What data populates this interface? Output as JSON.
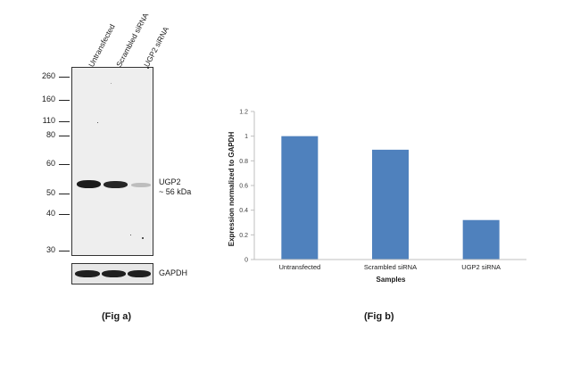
{
  "fig_a": {
    "lane_labels": [
      "Untransfected",
      "Scrambled siRNA",
      "UGP2 siRNA"
    ],
    "mw_markers": [
      "260",
      "160",
      "110",
      "80",
      "60",
      "50",
      "40",
      "30"
    ],
    "target_label": "UGP2",
    "target_size": "~ 56 kDa",
    "loading_control_label": "GAPDH",
    "caption": "(Fig a)"
  },
  "fig_b": {
    "caption": "(Fig b)"
  },
  "chart_data": {
    "type": "bar",
    "categories": [
      "Untransfected",
      "Scrambled siRNA",
      "UGP2  siRNA"
    ],
    "values": [
      1.0,
      0.89,
      0.32
    ],
    "xlabel": "Samples",
    "ylabel": "Expression normalized to GAPDH",
    "ylim": [
      0,
      1.2
    ],
    "yticks": [
      "0",
      "0.2",
      "0.4",
      "0.6",
      "0.8",
      "1",
      "1.2"
    ],
    "bar_color": "#4f81bd",
    "grid": false
  }
}
